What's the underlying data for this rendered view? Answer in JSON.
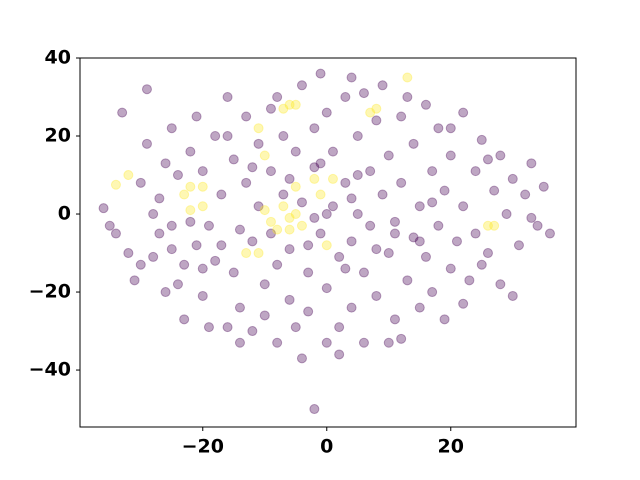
{
  "chart_data": {
    "type": "scatter",
    "xlim": [
      -39.8,
      40.2
    ],
    "ylim": [
      -54.6,
      40
    ],
    "xticks": [
      {
        "value": -20,
        "label": "−20"
      },
      0,
      20
    ],
    "yticks": [
      {
        "value": -40,
        "label": "−40"
      },
      {
        "value": -20,
        "label": "−20"
      },
      0,
      20,
      40
    ],
    "alpha": 0.35,
    "series": [
      {
        "color": "#440154",
        "x": [
          -36,
          -35,
          -34,
          -33,
          -31,
          -30,
          -29,
          -29,
          -28,
          -27,
          -27,
          -26,
          -25,
          -25,
          -24,
          -24,
          -23,
          -23,
          -22,
          -21,
          -21,
          -20,
          -20,
          -19,
          -18,
          -18,
          -17,
          -16,
          -16,
          -15,
          -15,
          -14,
          -14,
          -13,
          -13,
          -12,
          -12,
          -11,
          -11,
          -10,
          -10,
          -9,
          -9,
          -8,
          -8,
          -7,
          -7,
          -6,
          -6,
          -5,
          -5,
          -4,
          -4,
          -3,
          -3,
          -2,
          -2,
          -2,
          -1,
          -1,
          0,
          0,
          0,
          1,
          1,
          2,
          2,
          3,
          3,
          4,
          4,
          4,
          5,
          5,
          6,
          6,
          7,
          7,
          8,
          8,
          9,
          9,
          10,
          10,
          11,
          11,
          12,
          12,
          13,
          14,
          14,
          15,
          15,
          16,
          16,
          17,
          17,
          18,
          18,
          19,
          19,
          20,
          20,
          21,
          22,
          22,
          23,
          24,
          24,
          25,
          26,
          27,
          28,
          28,
          29,
          30,
          30,
          31,
          32,
          33,
          33,
          34,
          35,
          36,
          -32,
          -26,
          -19,
          -30,
          -8,
          6,
          12,
          -14,
          2,
          20,
          25,
          -28,
          -22,
          -17,
          -3,
          8,
          15,
          -9,
          0,
          4,
          -6,
          11,
          -1,
          3,
          -12,
          17,
          -20,
          22,
          -4,
          10,
          -16,
          13,
          -25,
          26,
          5,
          -2
        ],
        "values": [
          1.5,
          -3,
          -5,
          26,
          -17,
          8,
          32,
          18,
          -11,
          4,
          -5,
          13,
          -3,
          22,
          -18,
          10,
          -27,
          -13,
          16,
          -8,
          25,
          -21,
          11,
          -3,
          20,
          -12,
          5,
          -29,
          30,
          -15,
          14,
          -4,
          -24,
          8,
          25,
          -7,
          -30,
          18,
          2,
          -18,
          -26,
          27,
          11,
          -13,
          -33,
          20,
          5,
          -22,
          -9,
          16,
          -29,
          33,
          3,
          -15,
          -25,
          22,
          -50,
          12,
          36,
          -5,
          -33,
          26,
          -19,
          16,
          2,
          -11,
          -29,
          30,
          8,
          35,
          -24,
          -7,
          20,
          0,
          -15,
          -33,
          11,
          -3,
          24,
          -21,
          33,
          5,
          -10,
          15,
          -27,
          -2,
          25,
          8,
          -17,
          -6,
          18,
          -24,
          2,
          28,
          -11,
          11,
          -20,
          -3,
          22,
          -27,
          6,
          15,
          -14,
          -7,
          26,
          2,
          -17,
          11,
          -5,
          19,
          -10,
          6,
          -18,
          15,
          0,
          -21,
          9,
          -8,
          5,
          13,
          -1,
          -3,
          7,
          -5,
          -10,
          -20,
          -29,
          -13,
          30,
          31,
          -32,
          -33,
          -36,
          22,
          -13,
          0,
          -2,
          -8,
          -8,
          -9,
          -7,
          -5,
          0,
          4,
          9,
          -5,
          13,
          -14,
          12,
          3,
          -14,
          -23,
          -37,
          -33,
          20,
          30,
          -9,
          14,
          10,
          -1
        ]
      },
      {
        "color": "#fde725",
        "x": [
          -34,
          -32,
          -22,
          -22,
          -20,
          -11,
          -10,
          -13,
          -11,
          -7,
          -6,
          -5,
          -7,
          -6,
          -5,
          -8,
          -6,
          -4,
          -2,
          -1,
          0,
          7,
          8,
          13,
          26,
          27,
          -20,
          -23,
          -9,
          -10,
          -5,
          1
        ],
        "values": [
          7.5,
          10,
          7,
          1,
          2,
          22,
          15,
          -10,
          -10,
          27,
          28,
          28,
          2,
          -1,
          0,
          -4,
          -4,
          -3,
          9,
          5,
          -8,
          26,
          27,
          35,
          -3,
          -3,
          7,
          5,
          -2,
          1,
          7,
          9
        ]
      }
    ]
  }
}
